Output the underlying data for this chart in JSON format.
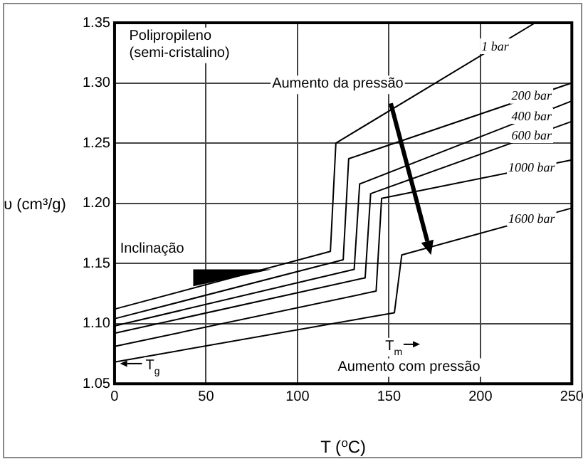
{
  "chart_data": {
    "type": "line",
    "xlabel": "T ($^{o}$C)",
    "ylabel": "υ (cm³/g)",
    "xlim": [
      0,
      250
    ],
    "ylim": [
      1.05,
      1.35
    ],
    "xticks": [
      0,
      50,
      100,
      150,
      200,
      250
    ],
    "yticks": [
      {
        "value": 1.05,
        "label": "1.05"
      },
      {
        "value": 1.1,
        "label": "1.10"
      },
      {
        "value": 1.15,
        "label": "1.15"
      },
      {
        "value": 1.2,
        "label": "1.20"
      },
      {
        "value": 1.25,
        "label": "1.25"
      },
      {
        "value": 1.3,
        "label": "1.30"
      },
      {
        "value": 1.35,
        "label": "1.35"
      }
    ],
    "grid": true,
    "legend": false,
    "marker": "none",
    "line_style": "solid",
    "series": [
      {
        "name": "1 bar",
        "color": "#000000",
        "x": [
          0,
          118,
          121,
          230
        ],
        "values": [
          1.112,
          1.16,
          1.25,
          1.35
        ]
      },
      {
        "name": "200 bar",
        "color": "#000000",
        "x": [
          0,
          125,
          128,
          250
        ],
        "values": [
          1.104,
          1.153,
          1.237,
          1.3
        ]
      },
      {
        "name": "400 bar",
        "color": "#000000",
        "x": [
          0,
          131,
          134,
          250
        ],
        "values": [
          1.098,
          1.145,
          1.216,
          1.285
        ]
      },
      {
        "name": "600 bar",
        "color": "#000000",
        "x": [
          0,
          137,
          140,
          250
        ],
        "values": [
          1.092,
          1.138,
          1.208,
          1.268
        ]
      },
      {
        "name": "1000 bar",
        "color": "#000000",
        "x": [
          0,
          143,
          146,
          250
        ],
        "values": [
          1.081,
          1.127,
          1.204,
          1.236
        ]
      },
      {
        "name": "1600 bar",
        "color": "#000000",
        "x": [
          0,
          153,
          157,
          250
        ],
        "values": [
          1.068,
          1.109,
          1.157,
          1.196
        ]
      }
    ],
    "annotations": [
      "Polipropileno\n(semi-cristalino)",
      "Aumento da pressão",
      "Inclinação",
      "T$_{m}$",
      "Aumento com pressão",
      "T$_{g}$"
    ]
  }
}
